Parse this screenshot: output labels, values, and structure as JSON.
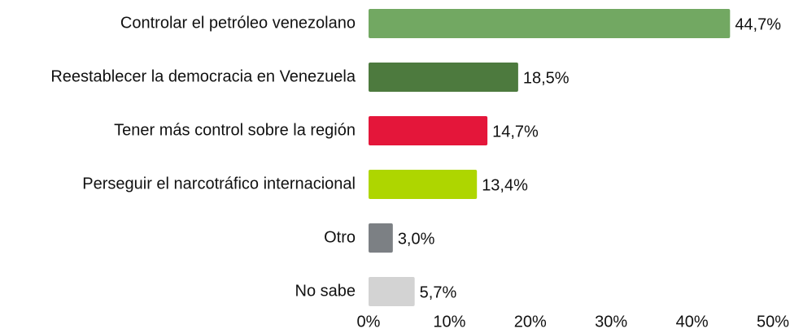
{
  "chart_data": {
    "type": "bar",
    "orientation": "horizontal",
    "categories": [
      "Controlar el petróleo venezolano",
      "Reestablecer la democracia en Venezuela",
      "Tener más control sobre la región",
      "Perseguir el narcotráfico internacional",
      "Otro",
      "No sabe"
    ],
    "values": [
      44.7,
      18.5,
      14.7,
      13.4,
      3.0,
      5.7
    ],
    "value_labels": [
      "44,7%",
      "18,5%",
      "14,7%",
      "13,4%",
      "3,0%",
      "5,7%"
    ],
    "colors": [
      "#72a862",
      "#4d7a3e",
      "#e4163a",
      "#aed600",
      "#7c8084",
      "#d3d3d3"
    ],
    "xlim": [
      0,
      50
    ],
    "xticks": [
      {
        "value": 0,
        "label": "0%"
      },
      {
        "value": 10,
        "label": "10%"
      },
      {
        "value": 20,
        "label": "20%"
      },
      {
        "value": 30,
        "label": "30%"
      },
      {
        "value": 40,
        "label": "40%"
      },
      {
        "value": 50,
        "label": "50%"
      }
    ]
  }
}
